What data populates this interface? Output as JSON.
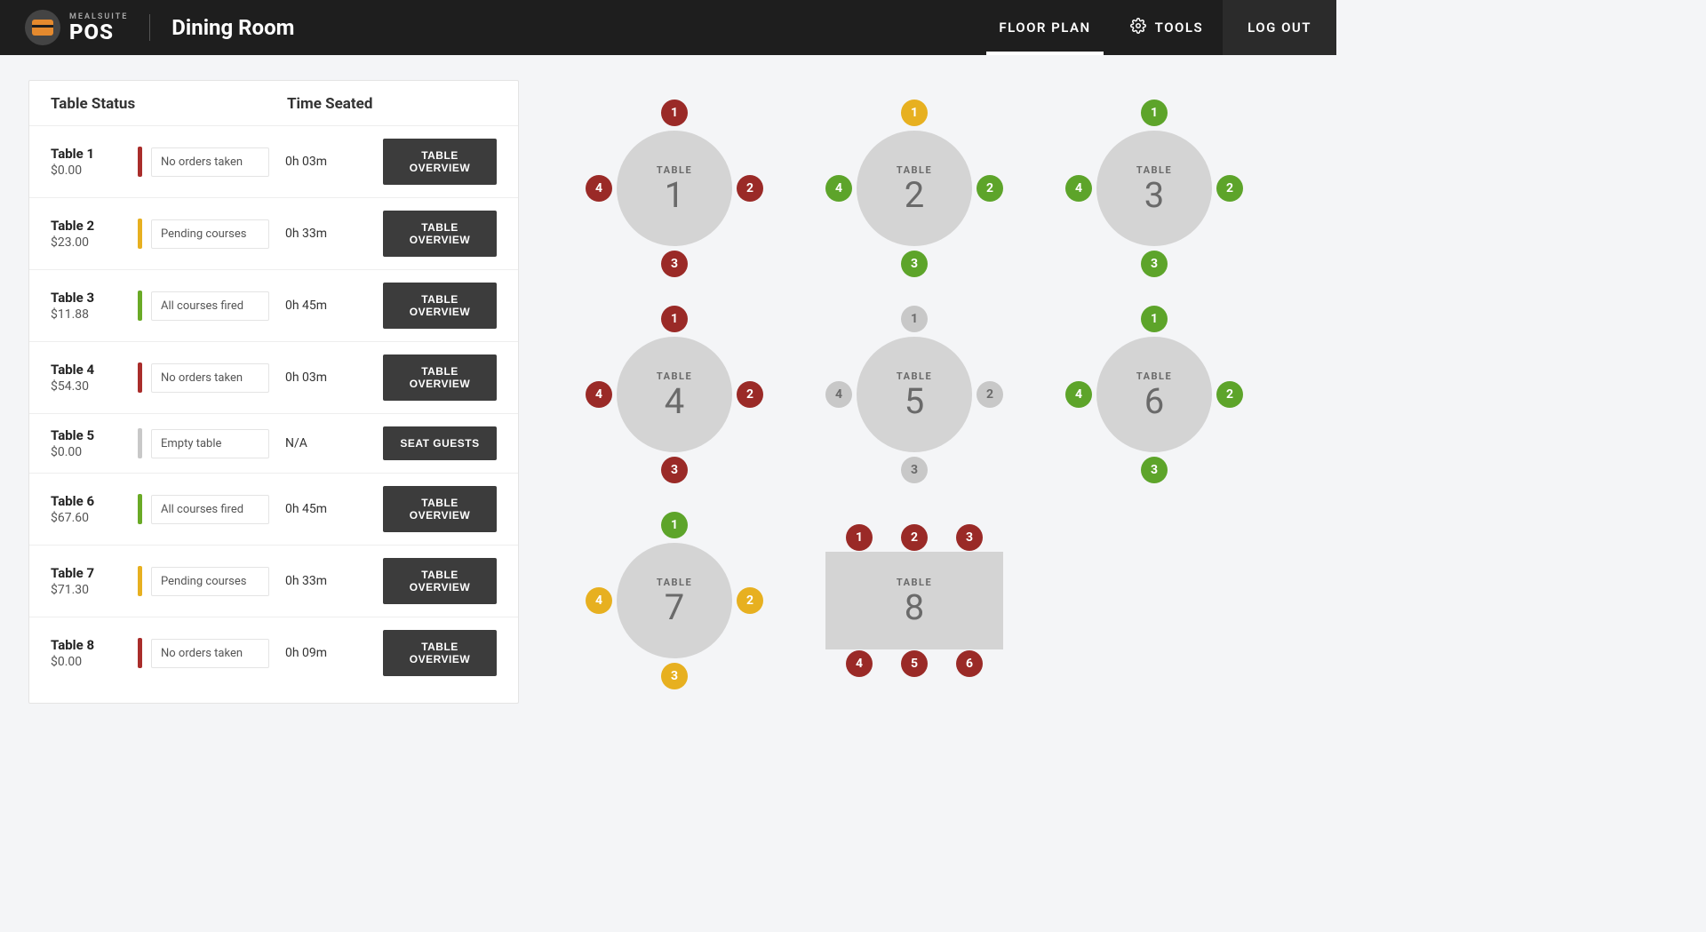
{
  "brand": {
    "sub": "MEALSUITE",
    "main": "POS"
  },
  "page_title": "Dining Room",
  "nav": {
    "floor_plan": "FLOOR PLAN",
    "tools": "TOOLS",
    "logout": "LOG OUT"
  },
  "colors": {
    "status_red": "#a92d2b",
    "status_amber": "#e7b020",
    "status_green": "#6aaa26",
    "status_grey": "#c8c8c8",
    "seat_red": "#9a2a27",
    "seat_green": "#5da42a",
    "seat_amber": "#e7b020",
    "seat_grey": "#c8c8c8"
  },
  "panel": {
    "header_status": "Table Status",
    "header_time": "Time Seated",
    "rows": [
      {
        "name": "Table 1",
        "amount": "$0.00",
        "status": "No orders taken",
        "bar": "status_red",
        "time": "0h 03m",
        "btn": "TABLE OVERVIEW"
      },
      {
        "name": "Table 2",
        "amount": "$23.00",
        "status": "Pending courses",
        "bar": "status_amber",
        "time": "0h 33m",
        "btn": "TABLE OVERVIEW"
      },
      {
        "name": "Table 3",
        "amount": "$11.88",
        "status": "All courses fired",
        "bar": "status_green",
        "time": "0h 45m",
        "btn": "TABLE OVERVIEW"
      },
      {
        "name": "Table 4",
        "amount": "$54.30",
        "status": "No orders taken",
        "bar": "status_red",
        "time": "0h 03m",
        "btn": "TABLE OVERVIEW"
      },
      {
        "name": "Table 5",
        "amount": "$0.00",
        "status": "Empty table",
        "bar": "status_grey",
        "time": "N/A",
        "btn": "SEAT GUESTS"
      },
      {
        "name": "Table 6",
        "amount": "$67.60",
        "status": "All courses fired",
        "bar": "status_green",
        "time": "0h 45m",
        "btn": "TABLE OVERVIEW"
      },
      {
        "name": "Table 7",
        "amount": "$71.30",
        "status": "Pending courses",
        "bar": "status_amber",
        "time": "0h 33m",
        "btn": "TABLE OVERVIEW"
      },
      {
        "name": "Table 8",
        "amount": "$0.00",
        "status": "No orders taken",
        "bar": "status_red",
        "time": "0h 09m",
        "btn": "TABLE OVERVIEW"
      }
    ]
  },
  "floor": {
    "table_label": "TABLE",
    "tables": [
      {
        "num": "1",
        "shape": "round",
        "seats": [
          {
            "n": "1",
            "c": "seat_red"
          },
          {
            "n": "2",
            "c": "seat_red"
          },
          {
            "n": "3",
            "c": "seat_red"
          },
          {
            "n": "4",
            "c": "seat_red"
          }
        ]
      },
      {
        "num": "2",
        "shape": "round",
        "seats": [
          {
            "n": "1",
            "c": "seat_amber"
          },
          {
            "n": "2",
            "c": "seat_green"
          },
          {
            "n": "3",
            "c": "seat_green"
          },
          {
            "n": "4",
            "c": "seat_green"
          }
        ]
      },
      {
        "num": "3",
        "shape": "round",
        "seats": [
          {
            "n": "1",
            "c": "seat_green"
          },
          {
            "n": "2",
            "c": "seat_green"
          },
          {
            "n": "3",
            "c": "seat_green"
          },
          {
            "n": "4",
            "c": "seat_green"
          }
        ]
      },
      {
        "num": "4",
        "shape": "round",
        "seats": [
          {
            "n": "1",
            "c": "seat_red"
          },
          {
            "n": "2",
            "c": "seat_red"
          },
          {
            "n": "3",
            "c": "seat_red"
          },
          {
            "n": "4",
            "c": "seat_red"
          }
        ]
      },
      {
        "num": "5",
        "shape": "round",
        "seats": [
          {
            "n": "1",
            "c": "seat_grey"
          },
          {
            "n": "2",
            "c": "seat_grey"
          },
          {
            "n": "3",
            "c": "seat_grey"
          },
          {
            "n": "4",
            "c": "seat_grey"
          }
        ]
      },
      {
        "num": "6",
        "shape": "round",
        "seats": [
          {
            "n": "1",
            "c": "seat_green"
          },
          {
            "n": "2",
            "c": "seat_green"
          },
          {
            "n": "3",
            "c": "seat_green"
          },
          {
            "n": "4",
            "c": "seat_green"
          }
        ]
      },
      {
        "num": "7",
        "shape": "round",
        "seats": [
          {
            "n": "1",
            "c": "seat_green"
          },
          {
            "n": "2",
            "c": "seat_amber"
          },
          {
            "n": "3",
            "c": "seat_amber"
          },
          {
            "n": "4",
            "c": "seat_amber"
          }
        ]
      },
      {
        "num": "8",
        "shape": "rect",
        "seats": [
          {
            "n": "1",
            "c": "seat_red"
          },
          {
            "n": "2",
            "c": "seat_red"
          },
          {
            "n": "3",
            "c": "seat_red"
          },
          {
            "n": "4",
            "c": "seat_red"
          },
          {
            "n": "5",
            "c": "seat_red"
          },
          {
            "n": "6",
            "c": "seat_red"
          }
        ]
      }
    ]
  }
}
